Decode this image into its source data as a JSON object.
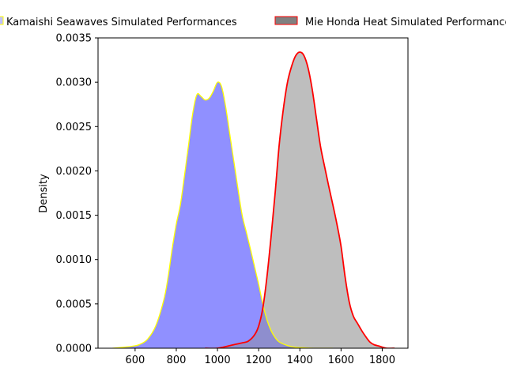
{
  "chart_data": {
    "type": "area",
    "title": "",
    "xlabel": "",
    "ylabel": "Density",
    "xlim": [
      420,
      1925
    ],
    "ylim": [
      0,
      0.0035
    ],
    "xticks": [
      600,
      800,
      1000,
      1200,
      1400,
      1600,
      1800
    ],
    "xtick_labels": [
      "600",
      "800",
      "1000",
      "1200",
      "1400",
      "1600",
      "1800"
    ],
    "yticks": [
      0,
      0.0005,
      0.001,
      0.0015,
      0.002,
      0.0025,
      0.003,
      0.0035
    ],
    "ytick_labels": [
      "0.0000",
      "0.0005",
      "0.0010",
      "0.0015",
      "0.0020",
      "0.0025",
      "0.0030",
      "0.0035"
    ],
    "grid": false,
    "legend_position": "top",
    "series": [
      {
        "name": "Kamaishi Seawaves Simulated Performances",
        "fill_color": "#c0c0ff",
        "line_color": "#ffff00",
        "legend_line_color": "#ffff00",
        "x": [
          490,
          540,
          580,
          620,
          660,
          700,
          740,
          760,
          780,
          800,
          820,
          840,
          860,
          880,
          900,
          920,
          940,
          960,
          980,
          1000,
          1020,
          1040,
          1060,
          1080,
          1100,
          1120,
          1140,
          1160,
          1180,
          1200,
          1220,
          1240,
          1260,
          1280,
          1300,
          1340,
          1380,
          1420,
          1470,
          1560
        ],
        "y": [
          0.0,
          1e-05,
          2e-05,
          4e-05,
          0.0001,
          0.00025,
          0.00055,
          0.0008,
          0.00112,
          0.0014,
          0.00162,
          0.00195,
          0.0023,
          0.00265,
          0.00286,
          0.00284,
          0.0028,
          0.00282,
          0.0029,
          0.003,
          0.00295,
          0.00272,
          0.00241,
          0.0021,
          0.00179,
          0.0015,
          0.00131,
          0.00112,
          0.00092,
          0.00072,
          0.0005,
          0.00032,
          0.0002,
          0.00012,
          7e-05,
          3e-05,
          1e-05,
          5e-06,
          0.0,
          0.0
        ]
      },
      {
        "name": "Mie Honda Heat Simulated Performances",
        "fill_color": "#bebebe",
        "line_color": "#ff0000",
        "legend_line_color": "#ff0000",
        "legend_fill_color": "#808080",
        "x": [
          940,
          1000,
          1080,
          1120,
          1150,
          1180,
          1200,
          1220,
          1240,
          1260,
          1280,
          1300,
          1320,
          1340,
          1360,
          1380,
          1400,
          1420,
          1440,
          1460,
          1480,
          1500,
          1520,
          1540,
          1560,
          1580,
          1600,
          1620,
          1640,
          1660,
          1680,
          1700,
          1720,
          1740,
          1760,
          1790,
          1820,
          1860
        ],
        "y": [
          0.0,
          0.0,
          4e-05,
          6e-05,
          8e-05,
          0.00015,
          0.00025,
          0.00045,
          0.0008,
          0.00125,
          0.00175,
          0.0023,
          0.0027,
          0.003,
          0.00318,
          0.0033,
          0.00334,
          0.0033,
          0.00316,
          0.00292,
          0.0026,
          0.00228,
          0.00205,
          0.00183,
          0.00162,
          0.0014,
          0.00115,
          0.0008,
          0.00052,
          0.00036,
          0.00028,
          0.0002,
          0.00013,
          7e-05,
          4e-05,
          2e-05,
          0.0,
          0.0
        ]
      }
    ]
  }
}
